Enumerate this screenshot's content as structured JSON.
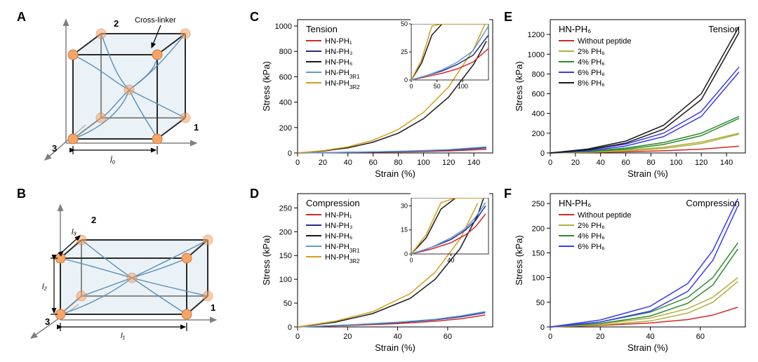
{
  "labels": {
    "A": "A",
    "B": "B",
    "C": "C",
    "D": "D",
    "E": "E",
    "F": "F"
  },
  "diagramA": {
    "cross_linker_label": "Cross-linker",
    "axis1": "1",
    "axis2": "2",
    "axis3": "3",
    "l0_label": "l̄₀",
    "node_color": "#f5a565",
    "node_stroke": "#d4763d",
    "face_color": "#d8e8f0",
    "chain_color": "#5b8db8",
    "edge_color": "#2a2a2a"
  },
  "diagramB": {
    "axis1": "1",
    "axis2": "2",
    "axis3": "3",
    "l1": "l₁",
    "l2": "l₂",
    "l3": "l₃"
  },
  "chartC": {
    "type": "line",
    "title": "Tension",
    "xlabel": "Strain (%)",
    "ylabel": "Stress (kPa)",
    "xlim": [
      0,
      155
    ],
    "ylim": [
      0,
      1050
    ],
    "xticks": [
      0,
      20,
      40,
      60,
      80,
      100,
      120,
      140
    ],
    "yticks": [
      0,
      200,
      400,
      600,
      800,
      1000
    ],
    "background_color": "#ffffff",
    "font_size_label": 13,
    "font_size_tick": 11,
    "series": [
      {
        "name": "HN-PH₁",
        "color": "#d62728",
        "data": [
          [
            0,
            0
          ],
          [
            30,
            3
          ],
          [
            60,
            6
          ],
          [
            90,
            10
          ],
          [
            120,
            16
          ],
          [
            150,
            28
          ]
        ]
      },
      {
        "name": "HN-PH₃",
        "color": "#2a2a90",
        "data": [
          [
            0,
            0
          ],
          [
            30,
            4
          ],
          [
            60,
            8
          ],
          [
            90,
            14
          ],
          [
            120,
            22
          ],
          [
            150,
            40
          ]
        ]
      },
      {
        "name": "HN-PH₆",
        "color": "#1a1a1a",
        "data": [
          [
            0,
            0
          ],
          [
            20,
            15
          ],
          [
            40,
            40
          ],
          [
            60,
            85
          ],
          [
            80,
            155
          ],
          [
            100,
            270
          ],
          [
            120,
            440
          ],
          [
            140,
            700
          ],
          [
            150,
            880
          ]
        ]
      },
      {
        "name": "HN-PH₃ᴿ¹",
        "sub": "3R1",
        "color": "#5b9bd5",
        "data": [
          [
            0,
            0
          ],
          [
            30,
            4
          ],
          [
            60,
            9
          ],
          [
            90,
            16
          ],
          [
            120,
            26
          ],
          [
            150,
            48
          ]
        ]
      },
      {
        "name": "HN-PH₃ᴿ²",
        "sub": "3R2",
        "color": "#d4a017",
        "data": [
          [
            0,
            0
          ],
          [
            20,
            18
          ],
          [
            40,
            48
          ],
          [
            60,
            100
          ],
          [
            80,
            185
          ],
          [
            100,
            320
          ],
          [
            120,
            520
          ],
          [
            140,
            820
          ],
          [
            150,
            1040
          ]
        ]
      }
    ],
    "inset": {
      "xlim": [
        0,
        150
      ],
      "ylim": [
        0,
        50
      ],
      "xticks": [
        0,
        50,
        100
      ],
      "yticks": [
        0,
        25,
        50
      ],
      "series_idx": [
        0,
        1,
        3
      ]
    }
  },
  "chartD": {
    "type": "line",
    "title": "Compression",
    "xlabel": "Strain (%)",
    "ylabel": "Stress (kPa)",
    "xlim": [
      0,
      78
    ],
    "ylim": [
      0,
      280
    ],
    "xticks": [
      0,
      20,
      40,
      60
    ],
    "yticks": [
      0,
      50,
      100,
      150,
      200,
      250
    ],
    "series": [
      {
        "name": "HN-PH₁",
        "color": "#d62728",
        "data": [
          [
            0,
            0
          ],
          [
            20,
            3
          ],
          [
            40,
            7
          ],
          [
            55,
            12
          ],
          [
            65,
            17
          ],
          [
            75,
            25
          ]
        ]
      },
      {
        "name": "HN-PH₃",
        "color": "#2a2a90",
        "data": [
          [
            0,
            0
          ],
          [
            20,
            4
          ],
          [
            40,
            9
          ],
          [
            55,
            15
          ],
          [
            65,
            21
          ],
          [
            75,
            30
          ]
        ]
      },
      {
        "name": "HN-PH₆",
        "color": "#1a1a1a",
        "data": [
          [
            0,
            0
          ],
          [
            15,
            10
          ],
          [
            30,
            28
          ],
          [
            45,
            60
          ],
          [
            55,
            100
          ],
          [
            65,
            165
          ],
          [
            72,
            235
          ],
          [
            75,
            280
          ]
        ]
      },
      {
        "name": "HN-PH₃ᴿ¹",
        "sub": "3R1",
        "color": "#5b9bd5",
        "data": [
          [
            0,
            0
          ],
          [
            20,
            4
          ],
          [
            40,
            10
          ],
          [
            55,
            16
          ],
          [
            65,
            23
          ],
          [
            75,
            32
          ]
        ]
      },
      {
        "name": "HN-PH₃ᴿ²",
        "sub": "3R2",
        "color": "#d4a017",
        "data": [
          [
            0,
            0
          ],
          [
            15,
            12
          ],
          [
            30,
            32
          ],
          [
            45,
            70
          ],
          [
            55,
            115
          ],
          [
            65,
            185
          ],
          [
            72,
            260
          ],
          [
            75,
            320
          ]
        ]
      }
    ],
    "inset": {
      "xlim": [
        0,
        78
      ],
      "ylim": [
        0,
        35
      ],
      "xticks": [
        0,
        40
      ],
      "yticks": [
        0,
        15,
        30
      ],
      "series_idx": [
        0,
        1,
        3
      ]
    }
  },
  "chartE": {
    "type": "line",
    "title_left": "HN-PH₆",
    "title_right": "Tension",
    "xlabel": "Strain (%)",
    "ylabel": "Stress (kPa)",
    "xlim": [
      0,
      155
    ],
    "ylim": [
      0,
      1350
    ],
    "xticks": [
      0,
      20,
      40,
      60,
      80,
      100,
      120,
      140
    ],
    "yticks": [
      0,
      200,
      400,
      600,
      800,
      1000,
      1200
    ],
    "series": [
      {
        "name": "Without peptide",
        "color": "#d62728",
        "data": [
          [
            0,
            0
          ],
          [
            30,
            5
          ],
          [
            60,
            12
          ],
          [
            90,
            22
          ],
          [
            120,
            38
          ],
          [
            150,
            68
          ]
        ]
      },
      {
        "name": "2% PH₆",
        "color": "#b0b040",
        "data": [
          [
            0,
            0
          ],
          [
            30,
            10
          ],
          [
            60,
            28
          ],
          [
            90,
            58
          ],
          [
            120,
            110
          ],
          [
            150,
            200
          ]
        ],
        "return": [
          [
            150,
            190
          ],
          [
            120,
            95
          ],
          [
            90,
            45
          ],
          [
            60,
            20
          ],
          [
            30,
            7
          ],
          [
            0,
            0
          ]
        ]
      },
      {
        "name": "4% PH₆",
        "color": "#2e8b2e",
        "data": [
          [
            0,
            0
          ],
          [
            30,
            18
          ],
          [
            60,
            50
          ],
          [
            90,
            105
          ],
          [
            120,
            200
          ],
          [
            150,
            370
          ]
        ],
        "return": [
          [
            150,
            350
          ],
          [
            120,
            175
          ],
          [
            90,
            85
          ],
          [
            60,
            38
          ],
          [
            30,
            13
          ],
          [
            0,
            0
          ]
        ]
      },
      {
        "name": "6% PH₆",
        "color": "#3a3af0",
        "data": [
          [
            0,
            0
          ],
          [
            30,
            30
          ],
          [
            60,
            90
          ],
          [
            90,
            200
          ],
          [
            120,
            420
          ],
          [
            150,
            870
          ]
        ],
        "return": [
          [
            150,
            820
          ],
          [
            120,
            370
          ],
          [
            90,
            165
          ],
          [
            60,
            70
          ],
          [
            30,
            22
          ],
          [
            0,
            0
          ]
        ]
      },
      {
        "name": "8% PH₆",
        "color": "#1a1a1a",
        "data": [
          [
            0,
            0
          ],
          [
            30,
            40
          ],
          [
            60,
            120
          ],
          [
            90,
            280
          ],
          [
            120,
            600
          ],
          [
            150,
            1280
          ]
        ],
        "return": [
          [
            150,
            1220
          ],
          [
            120,
            540
          ],
          [
            90,
            240
          ],
          [
            60,
            100
          ],
          [
            30,
            32
          ],
          [
            0,
            0
          ]
        ]
      }
    ]
  },
  "chartF": {
    "type": "line",
    "title_left": "HN-PH₆",
    "title_right": "Compression",
    "xlabel": "Strain (%)",
    "ylabel": "Stress (kPa)",
    "xlim": [
      0,
      78
    ],
    "ylim": [
      0,
      270
    ],
    "xticks": [
      0,
      20,
      40,
      60
    ],
    "yticks": [
      0,
      50,
      100,
      150,
      200,
      250
    ],
    "series": [
      {
        "name": "Without peptide",
        "color": "#d62728",
        "data": [
          [
            0,
            0
          ],
          [
            20,
            3
          ],
          [
            40,
            8
          ],
          [
            55,
            15
          ],
          [
            65,
            24
          ],
          [
            75,
            40
          ]
        ]
      },
      {
        "name": "2% PH₆",
        "color": "#b0b040",
        "data": [
          [
            0,
            0
          ],
          [
            20,
            6
          ],
          [
            40,
            18
          ],
          [
            55,
            37
          ],
          [
            65,
            60
          ],
          [
            75,
            100
          ]
        ],
        "return": [
          [
            75,
            92
          ],
          [
            65,
            50
          ],
          [
            55,
            28
          ],
          [
            40,
            12
          ],
          [
            20,
            4
          ],
          [
            0,
            0
          ]
        ]
      },
      {
        "name": "4% PH₆",
        "color": "#2e8b2e",
        "data": [
          [
            0,
            0
          ],
          [
            20,
            10
          ],
          [
            40,
            30
          ],
          [
            55,
            60
          ],
          [
            65,
            100
          ],
          [
            75,
            170
          ]
        ],
        "return": [
          [
            75,
            158
          ],
          [
            65,
            85
          ],
          [
            55,
            48
          ],
          [
            40,
            22
          ],
          [
            20,
            7
          ],
          [
            0,
            0
          ]
        ]
      },
      {
        "name": "6% PH₆",
        "color": "#3a3af0",
        "data": [
          [
            0,
            0
          ],
          [
            20,
            14
          ],
          [
            40,
            42
          ],
          [
            55,
            88
          ],
          [
            65,
            155
          ],
          [
            75,
            260
          ]
        ],
        "return": [
          [
            75,
            245
          ],
          [
            65,
            135
          ],
          [
            55,
            72
          ],
          [
            40,
            32
          ],
          [
            20,
            10
          ],
          [
            0,
            0
          ]
        ]
      }
    ]
  }
}
